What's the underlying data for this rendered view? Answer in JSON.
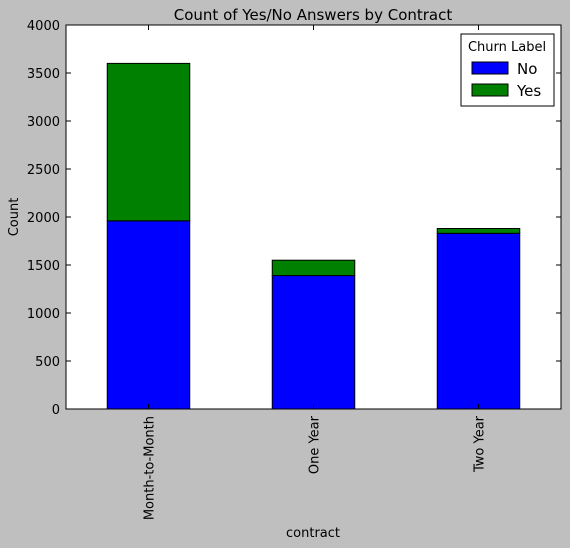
{
  "chart_data": {
    "type": "bar",
    "stacked": true,
    "title": "Count of Yes/No Answers by Contract",
    "xlabel": "contract",
    "ylabel": "Count",
    "categories": [
      "Month-to-Month",
      "One Year",
      "Two Year"
    ],
    "series": [
      {
        "name": "No",
        "values": [
          1960,
          1390,
          1830
        ],
        "color": "#0000ff"
      },
      {
        "name": "Yes",
        "values": [
          1640,
          160,
          50
        ],
        "color": "#008000"
      }
    ],
    "ylim": [
      0,
      4000
    ],
    "yticks": [
      0,
      500,
      1000,
      1500,
      2000,
      2500,
      3000,
      3500,
      4000
    ],
    "grid": false,
    "legend": {
      "title": "Churn Label",
      "placement": "top-right"
    },
    "background": "#bfbfbf",
    "plot_background": "#ffffff"
  }
}
